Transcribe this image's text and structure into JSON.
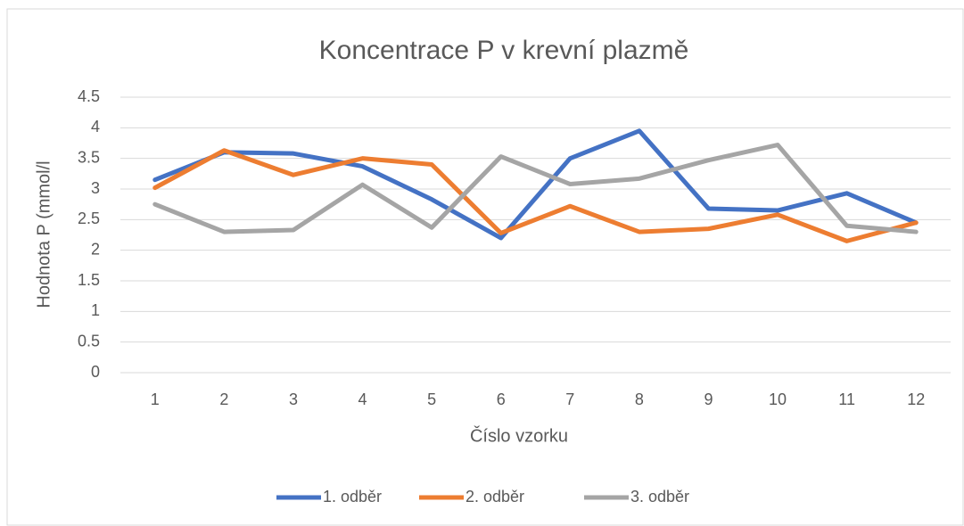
{
  "chart_data": {
    "type": "line",
    "title": "Koncentrace P v krevní plazmě",
    "x_label": "Číslo vzorku",
    "y_label": "Hodnota P (mmol/l",
    "categories": [
      "1",
      "2",
      "3",
      "4",
      "5",
      "6",
      "7",
      "8",
      "9",
      "10",
      "11",
      "12"
    ],
    "series": [
      {
        "name": "1. odběr",
        "color": "#4472c4",
        "values": [
          3.15,
          3.6,
          3.58,
          3.37,
          2.83,
          2.2,
          3.5,
          3.95,
          2.68,
          2.65,
          2.93,
          2.45
        ]
      },
      {
        "name": "2. odběr",
        "color": "#ed7d31",
        "values": [
          3.02,
          3.63,
          3.23,
          3.5,
          3.4,
          2.28,
          2.72,
          2.3,
          2.35,
          2.58,
          2.15,
          2.45
        ]
      },
      {
        "name": "3. odběr",
        "color": "#a5a5a5",
        "values": [
          2.75,
          2.3,
          2.33,
          3.07,
          2.37,
          3.53,
          3.08,
          3.17,
          3.47,
          3.72,
          2.4,
          2.3
        ]
      }
    ],
    "ylim": [
      0,
      4.5
    ],
    "yticks": [
      0,
      0.5,
      1,
      1.5,
      2,
      2.5,
      3,
      3.5,
      4,
      4.5
    ],
    "grid": true,
    "legend": "bottom"
  }
}
